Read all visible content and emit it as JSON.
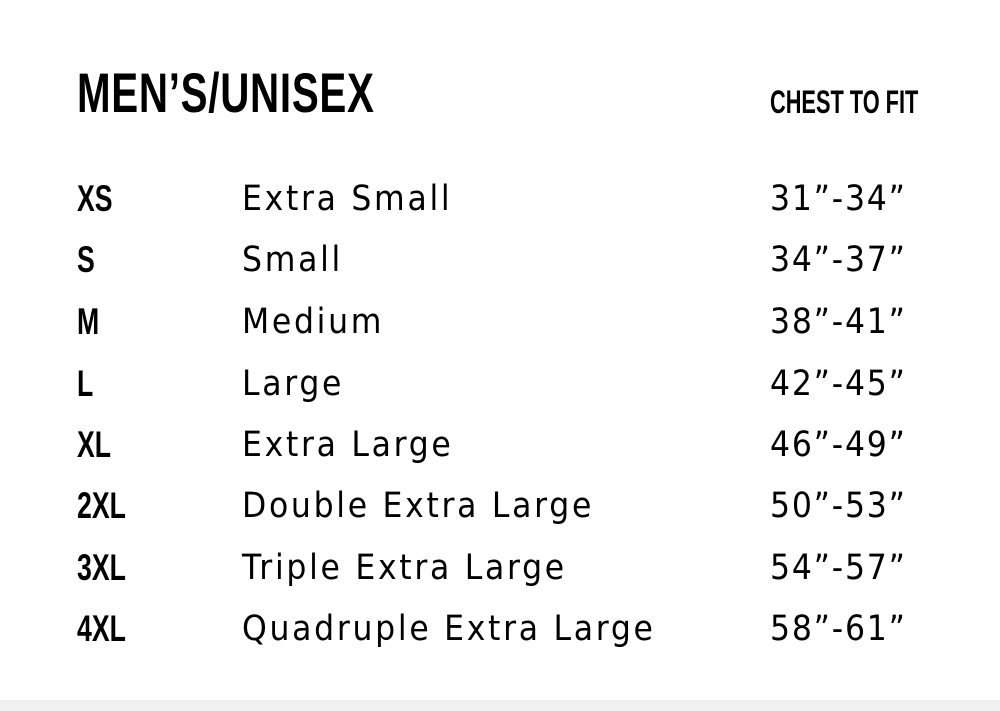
{
  "title": "MEN’S/UNISEX",
  "column_header": "CHEST TO FIT",
  "sizes": [
    {
      "code": "XS",
      "name": "Extra Small",
      "chest": "31”-34”"
    },
    {
      "code": "S",
      "name": "Small",
      "chest": "34”-37”"
    },
    {
      "code": "M",
      "name": "Medium",
      "chest": "38”-41”"
    },
    {
      "code": "L",
      "name": "Large",
      "chest": "42”-45”"
    },
    {
      "code": "XL",
      "name": "Extra Large",
      "chest": "46”-49”"
    },
    {
      "code": "2XL",
      "name": "Double Extra Large",
      "chest": "50”-53”"
    },
    {
      "code": "3XL",
      "name": "Triple Extra Large",
      "chest": "54”-57”"
    },
    {
      "code": "4XL",
      "name": "Quadruple Extra Large",
      "chest": "58”-61”"
    }
  ]
}
